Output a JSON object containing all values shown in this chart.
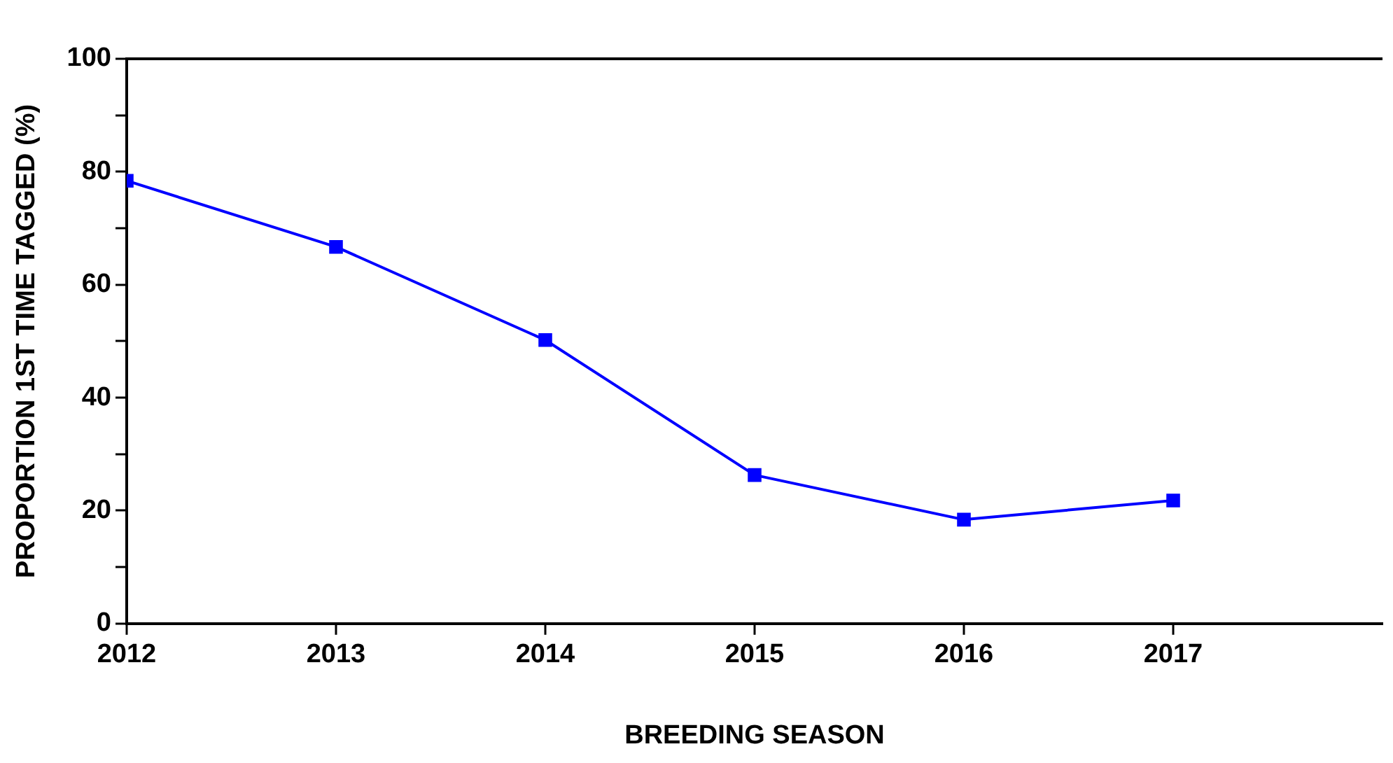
{
  "chart_data": {
    "type": "line",
    "xlabel": "BREEDING SEASON",
    "ylabel": "PROPORTION 1ST TIME TAGGED (%)",
    "x": [
      2012,
      2013,
      2014,
      2015,
      2016,
      2017
    ],
    "series": [
      {
        "color": "#0000ff",
        "values": [
          78.4,
          66.7,
          50.2,
          26.3,
          18.4,
          21.8
        ]
      }
    ],
    "xlim": [
      2012,
      2018
    ],
    "xticks": [
      2012,
      2013,
      2014,
      2015,
      2016,
      2017
    ],
    "ylim": [
      0,
      100
    ],
    "yticks": [
      0,
      {
        "value": 10,
        "label": null
      },
      20,
      {
        "value": 30,
        "label": null
      },
      40,
      {
        "value": 50,
        "label": null
      },
      60,
      {
        "value": 70,
        "label": null
      },
      80,
      {
        "value": 90,
        "label": null
      },
      100
    ],
    "grid": false,
    "legend": false,
    "marker": "square",
    "line_style": "solid"
  }
}
